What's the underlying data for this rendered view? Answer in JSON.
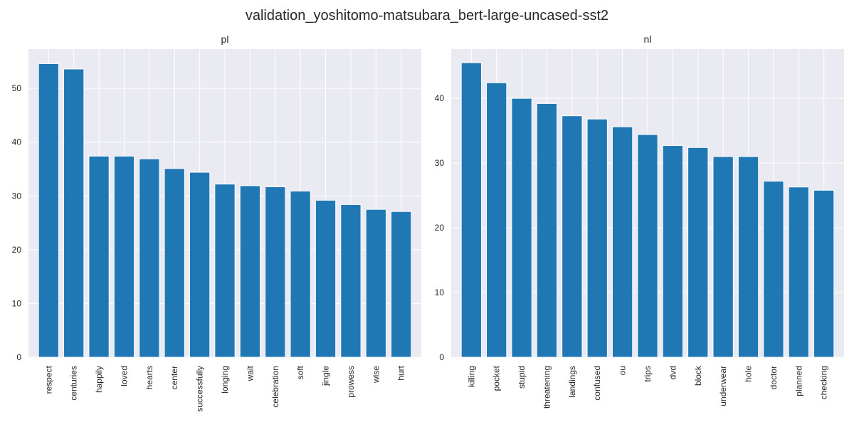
{
  "figure": {
    "title": "validation_yoshitomo-matsubara_bert-large-uncased-sst2"
  },
  "chart_data": [
    {
      "type": "bar",
      "title": "pl",
      "xlabel": "",
      "ylabel": "",
      "categories": [
        "respect",
        "centuries",
        "happily",
        "loved",
        "hearts",
        "center",
        "successfully",
        "longing",
        "wait",
        "celebration",
        "soft",
        "jingle",
        "prowess",
        "wise",
        "hurt"
      ],
      "values": [
        54.6,
        53.6,
        37.4,
        37.4,
        36.9,
        35.1,
        34.4,
        32.2,
        31.9,
        31.7,
        30.9,
        29.2,
        28.4,
        27.5,
        27.1
      ],
      "ylim": [
        0,
        57.3
      ],
      "yticks": [
        0,
        10,
        20,
        30,
        40,
        50
      ],
      "grid": true,
      "color": "#1f77b4"
    },
    {
      "type": "bar",
      "title": "nl",
      "xlabel": "",
      "ylabel": "",
      "categories": [
        "killing",
        "pocket",
        "stupid",
        "threatening",
        "landings",
        "confused",
        "ou",
        "trips",
        "dvd",
        "block",
        "underwear",
        "hole",
        "doctor",
        "planned",
        "checking"
      ],
      "values": [
        45.5,
        42.4,
        40.0,
        39.2,
        37.3,
        36.8,
        35.6,
        34.4,
        32.7,
        32.4,
        31.0,
        31.0,
        27.2,
        26.3,
        25.8
      ],
      "ylim": [
        0,
        47.6
      ],
      "yticks": [
        0,
        10,
        20,
        30,
        40
      ],
      "grid": true,
      "color": "#1f77b4"
    }
  ]
}
